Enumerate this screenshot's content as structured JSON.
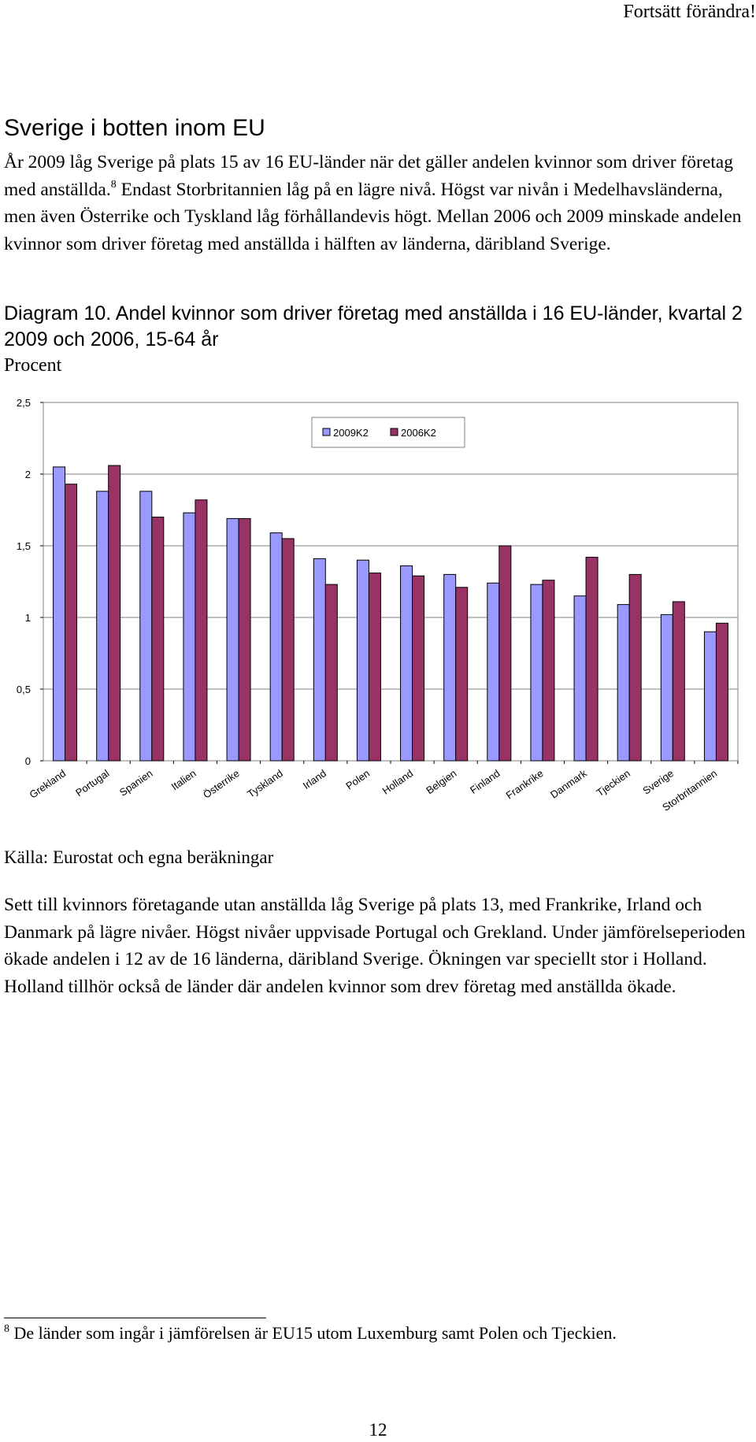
{
  "header": {
    "running_title": "Fortsätt förändra!"
  },
  "section": {
    "title": "Sverige i botten inom EU",
    "para1_part1": "År 2009 låg Sverige på plats 15 av 16 EU-länder när det gäller andelen kvinnor som driver företag med anställda.",
    "para1_footnote_ref": "8",
    "para1_part2": " Endast Storbritannien låg på en lägre nivå. Högst var nivån i Medelhavsländerna, men även Österrike och Tyskland låg förhållandevis högt. Mellan 2006 och 2009 minskade andelen kvinnor som driver företag med anställda i hälften av länderna, däribland Sverige."
  },
  "diagram": {
    "title": "Diagram 10. Andel kvinnor som driver företag med anställda i 16 EU-länder, kvartal 2 2009 och 2006, 15-64 år",
    "unit": "Procent",
    "source": "Källa: Eurostat och egna beräkningar"
  },
  "chart_data": {
    "type": "bar",
    "categories": [
      "Grekland",
      "Portugal",
      "Spanien",
      "Italien",
      "Österrike",
      "Tyskland",
      "Irland",
      "Polen",
      "Holland",
      "Belgien",
      "Finland",
      "Frankrike",
      "Danmark",
      "Tjeckien",
      "Sverige",
      "Storbritannien"
    ],
    "series": [
      {
        "name": "2009K2",
        "color": "#9999ff",
        "values": [
          2.05,
          1.88,
          1.88,
          1.73,
          1.69,
          1.59,
          1.41,
          1.4,
          1.36,
          1.3,
          1.24,
          1.23,
          1.15,
          1.09,
          1.02,
          0.9
        ]
      },
      {
        "name": "2006K2",
        "color": "#993366",
        "values": [
          1.93,
          2.06,
          1.7,
          1.82,
          1.69,
          1.55,
          1.23,
          1.31,
          1.29,
          1.21,
          1.5,
          1.26,
          1.42,
          1.3,
          1.11,
          0.96
        ]
      }
    ],
    "yticks": [
      "0",
      "0,5",
      "1",
      "1,5",
      "2",
      "2,5"
    ],
    "ylim": [
      0,
      2.5
    ],
    "grid": true,
    "legend_position": "top-center",
    "title": "",
    "xlabel": "",
    "ylabel": ""
  },
  "body": {
    "para2": "Sett till kvinnors företagande utan anställda låg Sverige på plats 13, med Frankrike, Irland och Danmark på lägre nivåer. Högst nivåer uppvisade Portugal och Grekland. Under jämförelseperioden ökade andelen i 12 av de 16 länderna, däribland Sverige. Ökningen var speciellt stor i Holland. Holland tillhör också de länder där andelen kvinnor som drev företag med anställda ökade."
  },
  "footnote": {
    "number": "8",
    "text": "De länder som ingår i jämförelsen är EU15 utom Luxemburg samt Polen och Tjeckien."
  },
  "page": {
    "number": "12"
  }
}
